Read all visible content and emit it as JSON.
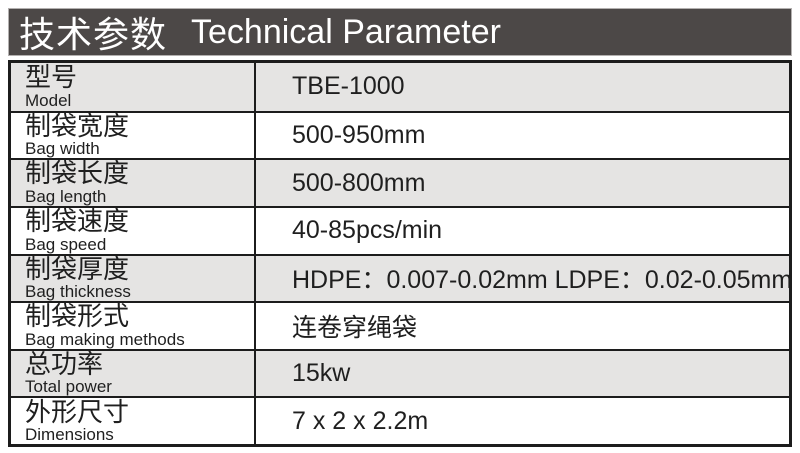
{
  "header": {
    "title_cn": "技术参数",
    "title_en": "Technical Parameter"
  },
  "table": {
    "rows": [
      {
        "cn": "型号",
        "en": "Model",
        "value": "TBE-1000"
      },
      {
        "cn": "制袋宽度",
        "en": "Bag width",
        "value": "500-950mm"
      },
      {
        "cn": "制袋长度",
        "en": "Bag length",
        "value": "500-800mm"
      },
      {
        "cn": "制袋速度",
        "en": "Bag speed",
        "value": "40-85pcs/min"
      },
      {
        "cn": "制袋厚度",
        "en": "Bag thickness",
        "value": "HDPE：0.007-0.02mm LDPE：0.02-0.05mm"
      },
      {
        "cn": "制袋形式",
        "en": "Bag making methods",
        "value": "连卷穿绳袋"
      },
      {
        "cn": "总功率",
        "en": "Total power",
        "value": "15kw"
      },
      {
        "cn": "外形尺寸",
        "en": "Dimensions",
        "value": "7 x 2 x 2.2m"
      }
    ]
  },
  "colors": {
    "header_bg": "#4c4847",
    "header_text": "#ffffff",
    "row_alt_bg": "#e5e4e3",
    "row_bg": "#ffffff",
    "border": "#1c1c1c",
    "text": "#1f1f1f"
  }
}
